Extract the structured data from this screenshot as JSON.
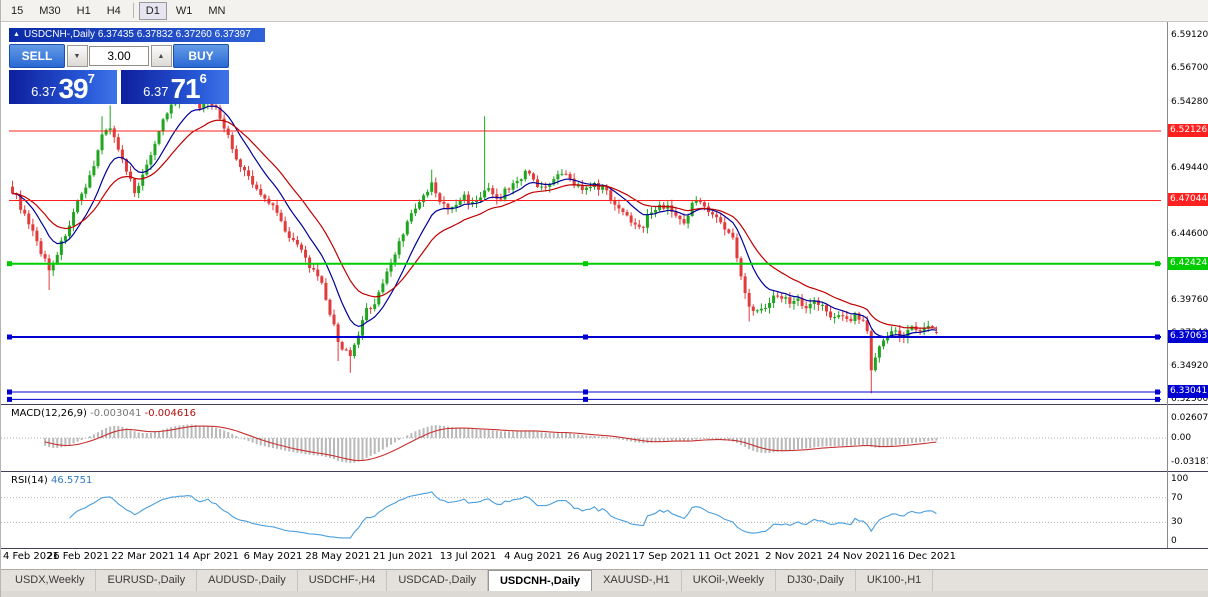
{
  "toolbar": {
    "timeframes": [
      "15",
      "M30",
      "H1",
      "H4",
      "D1",
      "W1",
      "MN"
    ],
    "active": "D1",
    "separator_before_index": 4
  },
  "chart_title": "USDCNH-,Daily 6.37435 6.37832 6.37260 6.37397",
  "icons": {
    "collapse": "▲",
    "spin_up": "▲",
    "spin_down": "▼"
  },
  "trade_panel": {
    "sell_label": "SELL",
    "buy_label": "BUY",
    "volume": "3.00",
    "sell_price_small": "6.37",
    "sell_price_big": "39",
    "sell_price_sup": "7",
    "buy_price_small": "6.37",
    "buy_price_big": "71",
    "buy_price_sup": "6"
  },
  "chart_data": {
    "type": "candlestick",
    "symbol": "USDCNH-",
    "timeframe": "Daily",
    "ohlc": {
      "open": "6.37435",
      "high": "6.37832",
      "low": "6.37260",
      "close": "6.37397"
    },
    "up_color": "#1fa51f",
    "down_color": "#e13b3b",
    "ma_lines": [
      {
        "period": 10,
        "color": "#000099"
      },
      {
        "period": 21,
        "color": "#c00000"
      }
    ],
    "price_axis": {
      "max": 6.598,
      "min": 6.3224,
      "labels": [
        "6.59120",
        "6.56700",
        "6.54280",
        "6.51860",
        "6.49440",
        "6.47020",
        "6.44600",
        "6.42180",
        "6.39760",
        "6.37340",
        "6.34920",
        "6.32500"
      ]
    },
    "x_axis_labels": [
      "4 Feb 2021",
      "26 Feb 2021",
      "22 Mar 2021",
      "14 Apr 2021",
      "6 May 2021",
      "28 May 2021",
      "21 Jun 2021",
      "13 Jul 2021",
      "4 Aug 2021",
      "26 Aug 2021",
      "17 Sep 2021",
      "11 Oct 2021",
      "2 Nov 2021",
      "24 Nov 2021",
      "16 Dec 2021"
    ],
    "candles_count": 228,
    "anchors": [
      [
        0,
        6.478
      ],
      [
        2,
        6.466
      ],
      [
        4,
        6.452
      ],
      [
        6,
        6.44
      ],
      [
        9,
        6.42
      ],
      [
        11,
        6.432
      ],
      [
        13,
        6.446
      ],
      [
        16,
        6.468
      ],
      [
        18,
        6.478
      ],
      [
        20,
        6.498
      ],
      [
        22,
        6.518
      ],
      [
        24,
        6.525
      ],
      [
        26,
        6.508
      ],
      [
        28,
        6.49
      ],
      [
        30,
        6.478
      ],
      [
        32,
        6.488
      ],
      [
        34,
        6.505
      ],
      [
        36,
        6.522
      ],
      [
        38,
        6.535
      ],
      [
        40,
        6.542
      ],
      [
        43,
        6.548
      ],
      [
        46,
        6.54
      ],
      [
        48,
        6.545
      ],
      [
        50,
        6.538
      ],
      [
        52,
        6.525
      ],
      [
        54,
        6.508
      ],
      [
        56,
        6.495
      ],
      [
        58,
        6.487
      ],
      [
        60,
        6.478
      ],
      [
        62,
        6.472
      ],
      [
        64,
        6.468
      ],
      [
        66,
        6.455
      ],
      [
        68,
        6.445
      ],
      [
        70,
        6.437
      ],
      [
        72,
        6.428
      ],
      [
        74,
        6.418
      ],
      [
        76,
        6.408
      ],
      [
        78,
        6.388
      ],
      [
        80,
        6.368
      ],
      [
        83,
        6.355
      ],
      [
        85,
        6.372
      ],
      [
        87,
        6.39
      ],
      [
        89,
        6.396
      ],
      [
        91,
        6.41
      ],
      [
        93,
        6.425
      ],
      [
        95,
        6.44
      ],
      [
        97,
        6.455
      ],
      [
        99,
        6.464
      ],
      [
        101,
        6.473
      ],
      [
        103,
        6.482
      ],
      [
        105,
        6.47
      ],
      [
        107,
        6.463
      ],
      [
        109,
        6.468
      ],
      [
        111,
        6.473
      ],
      [
        113,
        6.468
      ],
      [
        115,
        6.474
      ],
      [
        117,
        6.478
      ],
      [
        119,
        6.47
      ],
      [
        121,
        6.477
      ],
      [
        123,
        6.482
      ],
      [
        125,
        6.488
      ],
      [
        127,
        6.492
      ],
      [
        129,
        6.482
      ],
      [
        131,
        6.478
      ],
      [
        133,
        6.485
      ],
      [
        135,
        6.49
      ],
      [
        137,
        6.486
      ],
      [
        139,
        6.481
      ],
      [
        141,
        6.478
      ],
      [
        143,
        6.481
      ],
      [
        145,
        6.48
      ],
      [
        147,
        6.472
      ],
      [
        149,
        6.466
      ],
      [
        151,
        6.458
      ],
      [
        153,
        6.454
      ],
      [
        155,
        6.453
      ],
      [
        157,
        6.463
      ],
      [
        159,
        6.466
      ],
      [
        161,
        6.467
      ],
      [
        163,
        6.458
      ],
      [
        165,
        6.456
      ],
      [
        167,
        6.467
      ],
      [
        169,
        6.471
      ],
      [
        171,
        6.464
      ],
      [
        173,
        6.457
      ],
      [
        175,
        6.45
      ],
      [
        177,
        6.442
      ],
      [
        179,
        6.415
      ],
      [
        181,
        6.395
      ],
      [
        183,
        6.389
      ],
      [
        185,
        6.394
      ],
      [
        187,
        6.399
      ],
      [
        189,
        6.401
      ],
      [
        191,
        6.396
      ],
      [
        193,
        6.399
      ],
      [
        195,
        6.391
      ],
      [
        197,
        6.397
      ],
      [
        199,
        6.392
      ],
      [
        201,
        6.386
      ],
      [
        203,
        6.389
      ],
      [
        205,
        6.383
      ],
      [
        207,
        6.386
      ],
      [
        209,
        6.383
      ],
      [
        210,
        6.373
      ],
      [
        211,
        6.345
      ],
      [
        213,
        6.362
      ],
      [
        215,
        6.372
      ],
      [
        217,
        6.376
      ],
      [
        219,
        6.371
      ],
      [
        221,
        6.378
      ],
      [
        223,
        6.375
      ],
      [
        225,
        6.381
      ],
      [
        227,
        6.37397
      ]
    ],
    "spikes": [
      {
        "i": 9,
        "low": 6.405
      },
      {
        "i": 22,
        "high": 6.532
      },
      {
        "i": 24,
        "high": 6.54
      },
      {
        "i": 40,
        "high": 6.553
      },
      {
        "i": 43,
        "high": 6.558
      },
      {
        "i": 48,
        "high": 6.554
      },
      {
        "i": 80,
        "low": 6.353
      },
      {
        "i": 83,
        "low": 6.3445
      },
      {
        "i": 103,
        "high": 6.493
      },
      {
        "i": 116,
        "high": 6.532
      },
      {
        "i": 181,
        "low": 6.382
      },
      {
        "i": 211,
        "low": 6.3295
      }
    ],
    "last_candle": [
      6.37435,
      6.37832,
      6.3726,
      6.37397
    ],
    "hlines": [
      {
        "price": 6.52126,
        "color": "#ff2020",
        "width": 1,
        "badge": "6.52126",
        "handles": false
      },
      {
        "price": 6.47044,
        "color": "#ff2020",
        "width": 1,
        "badge": "6.47044",
        "handles": false
      },
      {
        "price": 6.42424,
        "color": "#00cc00",
        "width": 2,
        "badge": "6.42424",
        "handles": true
      },
      {
        "price": 6.37063,
        "color": "#0000d0",
        "width": 2,
        "badge": "6.37063",
        "handles": true
      },
      {
        "price": 6.33041,
        "color": "#0000d0",
        "width": 1,
        "badge": "6.33041",
        "handles": true
      },
      {
        "price": 6.325,
        "color": "#0000d0",
        "width": 1,
        "badge": null,
        "handles": true
      }
    ],
    "macd": {
      "label": "MACD(12,26,9)",
      "value_main": "-0.003041",
      "value_signal": "-0.004616",
      "scale_labels": [
        "0.02607",
        "0.00",
        "-0.03187"
      ],
      "histogram_color": "#b9b9b9",
      "signal_color": "#c83232"
    },
    "rsi": {
      "label": "RSI(14)",
      "value": "46.5751",
      "scale_labels": [
        "100",
        "70",
        "30",
        "0"
      ],
      "levels": [
        70,
        30
      ],
      "line_color": "#4a9ede"
    }
  },
  "tabs": {
    "items": [
      "USDX,Weekly",
      "EURUSD-,Daily",
      "AUDUSD-,Daily",
      "USDCHF-,H4",
      "USDCAD-,Daily",
      "USDCNH-,Daily",
      "XAUUSD-,H1",
      "UKOil-,Weekly",
      "DJ30-,Daily",
      "UK100-,H1"
    ],
    "active_index": 5
  }
}
